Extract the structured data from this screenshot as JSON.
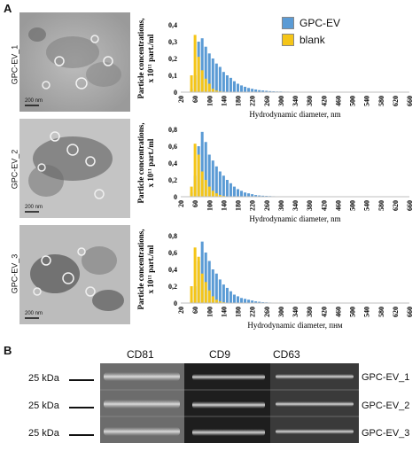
{
  "panel_a": "A",
  "panel_b": "B",
  "legend": [
    {
      "name": "GPC-EV",
      "color": "#5b9bd5"
    },
    {
      "name": "blank",
      "color": "#f5c518"
    }
  ],
  "rows": [
    {
      "label": "GPC-EV_1",
      "scalebar": "200 nm"
    },
    {
      "label": "GPC-EV_2",
      "scalebar": "200 nm"
    },
    {
      "label": "GPC-EV_3",
      "scalebar": "200 nm"
    }
  ],
  "chart_data": [
    {
      "type": "bar",
      "ylabel_line1": "Particle concentrations,",
      "ylabel_line2": "x 10¹¹ part./ml",
      "xlabel": "Hydrodynamic diameter, nm",
      "x_tick_labels": [
        "20",
        "60",
        "100",
        "140",
        "180",
        "220",
        "260",
        "300",
        "340",
        "380",
        "420",
        "460",
        "500",
        "540",
        "580",
        "620",
        "660"
      ],
      "y_tick_labels": [
        "0",
        "0,1",
        "0,2",
        "0,3",
        "0,4"
      ],
      "ylim": [
        0,
        0.4
      ],
      "xlim": [
        20,
        660
      ],
      "bin_width": 10,
      "x": [
        50,
        60,
        70,
        80,
        90,
        100,
        110,
        120,
        130,
        140,
        150,
        160,
        170,
        180,
        190,
        200,
        210,
        220,
        230,
        240,
        250,
        260,
        270,
        280,
        290,
        300,
        310,
        320,
        330,
        340
      ],
      "series": [
        {
          "name": "GPC-EV",
          "values": [
            0.02,
            0.1,
            0.3,
            0.32,
            0.27,
            0.23,
            0.2,
            0.17,
            0.15,
            0.12,
            0.1,
            0.085,
            0.065,
            0.05,
            0.04,
            0.032,
            0.025,
            0.02,
            0.016,
            0.012,
            0.01,
            0.008,
            0.006,
            0.005,
            0.004,
            0.004,
            0.003,
            0.003,
            0.002,
            0.002
          ]
        },
        {
          "name": "blank",
          "values": [
            0.1,
            0.34,
            0.21,
            0.13,
            0.08,
            0.05,
            0.02,
            0.01,
            0.005,
            0.003,
            0.002,
            0,
            0,
            0,
            0,
            0,
            0,
            0,
            0,
            0,
            0,
            0,
            0,
            0,
            0,
            0,
            0,
            0,
            0,
            0
          ]
        }
      ]
    },
    {
      "type": "bar",
      "ylabel_line1": "Particle concentrations,",
      "ylabel_line2": "x 10¹¹ part./ml",
      "xlabel": "Hydrodynamic diameter, nm",
      "x_tick_labels": [
        "20",
        "60",
        "100",
        "140",
        "180",
        "220",
        "260",
        "300",
        "340",
        "380",
        "420",
        "460",
        "500",
        "540",
        "580",
        "620",
        "660"
      ],
      "y_tick_labels": [
        "0",
        "0,2",
        "0,4",
        "0,6",
        "0,8"
      ],
      "ylim": [
        0,
        0.8
      ],
      "xlim": [
        20,
        660
      ],
      "bin_width": 10,
      "x": [
        50,
        60,
        70,
        80,
        90,
        100,
        110,
        120,
        130,
        140,
        150,
        160,
        170,
        180,
        190,
        200,
        210,
        220,
        230,
        240,
        250,
        260,
        270,
        280,
        290,
        300,
        310,
        320,
        330,
        340
      ],
      "series": [
        {
          "name": "GPC-EV",
          "values": [
            0.05,
            0.25,
            0.6,
            0.77,
            0.65,
            0.5,
            0.43,
            0.36,
            0.3,
            0.25,
            0.2,
            0.16,
            0.12,
            0.09,
            0.07,
            0.05,
            0.04,
            0.03,
            0.02,
            0.015,
            0.012,
            0.01,
            0.008,
            0.006,
            0.005,
            0.004,
            0.003,
            0.003,
            0.002,
            0.002
          ]
        },
        {
          "name": "blank",
          "values": [
            0.12,
            0.63,
            0.5,
            0.3,
            0.2,
            0.12,
            0.07,
            0.04,
            0.02,
            0.01,
            0.005,
            0,
            0,
            0,
            0,
            0,
            0,
            0,
            0,
            0,
            0,
            0,
            0,
            0,
            0,
            0,
            0,
            0,
            0,
            0
          ]
        }
      ]
    },
    {
      "type": "bar",
      "ylabel_line1": "Particle concentrations,",
      "ylabel_line2": "x 10¹¹ part./ml",
      "xlabel": "Hydrodynamic diameter, пнм",
      "x_tick_labels": [
        "20",
        "60",
        "100",
        "140",
        "180",
        "220",
        "260",
        "300",
        "340",
        "380",
        "420",
        "460",
        "500",
        "540",
        "580",
        "620",
        "660"
      ],
      "y_tick_labels": [
        "0",
        "0,2",
        "0,4",
        "0,6",
        "0,8"
      ],
      "ylim": [
        0,
        0.8
      ],
      "xlim": [
        20,
        660
      ],
      "bin_width": 10,
      "x": [
        50,
        60,
        70,
        80,
        90,
        100,
        110,
        120,
        130,
        140,
        150,
        160,
        170,
        180,
        190,
        200,
        210,
        220,
        230,
        240,
        250,
        260,
        270,
        280,
        290,
        300,
        310,
        320,
        330,
        340
      ],
      "series": [
        {
          "name": "GPC-EV",
          "values": [
            0.03,
            0.2,
            0.5,
            0.73,
            0.6,
            0.5,
            0.4,
            0.35,
            0.28,
            0.22,
            0.18,
            0.14,
            0.1,
            0.08,
            0.06,
            0.05,
            0.04,
            0.03,
            0.02,
            0.015,
            0.01,
            0.008,
            0.006,
            0.005,
            0.004,
            0.003,
            0.003,
            0.002,
            0.002,
            0.002
          ]
        },
        {
          "name": "blank",
          "values": [
            0.2,
            0.66,
            0.55,
            0.35,
            0.25,
            0.15,
            0.08,
            0.04,
            0.02,
            0.01,
            0.005,
            0,
            0,
            0,
            0,
            0,
            0,
            0,
            0,
            0,
            0,
            0,
            0,
            0,
            0,
            0,
            0,
            0,
            0,
            0
          ]
        }
      ]
    }
  ],
  "blot": {
    "columns": [
      "CD81",
      "CD9",
      "CD63"
    ],
    "marker_label": "25 kDa",
    "samples": [
      "GPC-EV_1",
      "GPC-EV_2",
      "GPC-EV_3"
    ]
  }
}
